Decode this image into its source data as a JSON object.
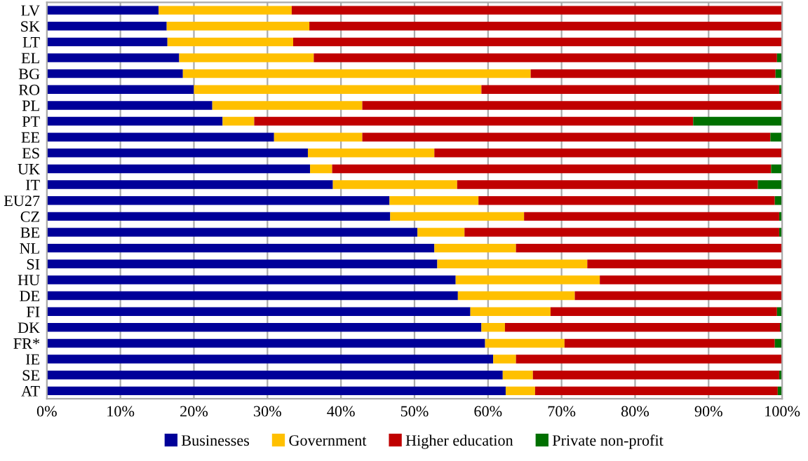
{
  "chart_data": {
    "type": "bar",
    "orientation": "horizontal",
    "stacked": true,
    "categories": [
      "LV",
      "SK",
      "LT",
      "EL",
      "BG",
      "RO",
      "PL",
      "PT",
      "EE",
      "ES",
      "UK",
      "IT",
      "EU27",
      "CZ",
      "BE",
      "NL",
      "SI",
      "HU",
      "DE",
      "FI",
      "DK",
      "FR*",
      "IE",
      "SE",
      "AT"
    ],
    "series": [
      {
        "name": "Businesses",
        "color": "#000099",
        "values": [
          15.2,
          16.3,
          16.4,
          18.0,
          18.5,
          20.0,
          22.5,
          23.9,
          30.9,
          35.5,
          35.8,
          38.9,
          46.6,
          46.7,
          50.4,
          52.7,
          53.1,
          55.6,
          55.9,
          57.6,
          59.1,
          59.6,
          60.7,
          62.0,
          62.4
        ]
      },
      {
        "name": "Government",
        "color": "#ffc000",
        "values": [
          18.1,
          19.4,
          17.1,
          18.3,
          47.3,
          39.1,
          20.4,
          4.3,
          12.0,
          17.2,
          3.0,
          16.9,
          12.1,
          18.2,
          6.4,
          11.1,
          20.4,
          19.6,
          15.9,
          10.9,
          3.2,
          10.8,
          3.1,
          4.1,
          4.0
        ]
      },
      {
        "name": "Higher education",
        "color": "#c00000",
        "values": [
          66.7,
          64.2,
          66.5,
          63.0,
          33.3,
          40.5,
          57.0,
          59.7,
          55.5,
          47.3,
          59.7,
          40.9,
          40.3,
          34.7,
          42.8,
          36.2,
          26.4,
          24.8,
          28.2,
          30.8,
          37.4,
          28.6,
          36.2,
          33.5,
          33.0
        ]
      },
      {
        "name": "Private non-profit",
        "color": "#007000",
        "values": [
          0,
          null,
          0,
          0.7,
          0.9,
          0.4,
          null,
          12.1,
          1.6,
          0,
          1.5,
          3.3,
          1.0,
          0.4,
          0.4,
          0,
          null,
          0,
          0,
          0.7,
          0.3,
          1.0,
          0,
          0.4,
          0.6
        ]
      }
    ],
    "xlim": [
      0,
      100
    ],
    "xticks": [
      {
        "value": 0,
        "label": "0%"
      },
      {
        "value": 10,
        "label": "10%"
      },
      {
        "value": 20,
        "label": "20%"
      },
      {
        "value": 30,
        "label": "30%"
      },
      {
        "value": 40,
        "label": "40%"
      },
      {
        "value": 50,
        "label": "50%"
      },
      {
        "value": 60,
        "label": "60%"
      },
      {
        "value": 70,
        "label": "70%"
      },
      {
        "value": 80,
        "label": "80%"
      },
      {
        "value": 90,
        "label": "90%"
      },
      {
        "value": 100,
        "label": "100%"
      }
    ],
    "grid": "x",
    "legend": "bottom"
  }
}
